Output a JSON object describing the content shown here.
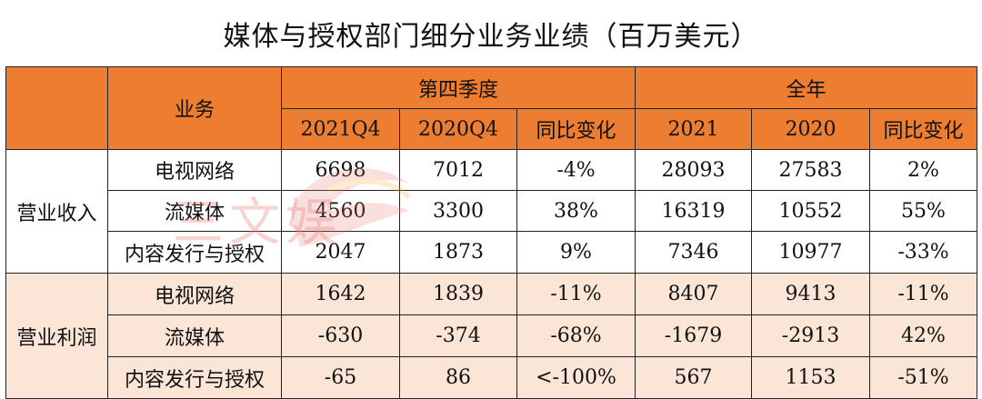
{
  "title": "媒体与授权部门细分业务业绩（百万美元）",
  "header": {
    "business": "业务",
    "q4_group": "第四季度",
    "fy_group": "全年",
    "q4_2021": "2021Q4",
    "q4_2020": "2020Q4",
    "q4_yoy": "同比变化",
    "fy_2021": "2021",
    "fy_2020": "2020",
    "fy_yoy": "同比变化"
  },
  "sections": [
    {
      "label": "营业收入",
      "rows": [
        {
          "name": "电视网络",
          "q4_2021": "6698",
          "q4_2020": "7012",
          "q4_yoy": "-4%",
          "fy_2021": "28093",
          "fy_2020": "27583",
          "fy_yoy": "2%"
        },
        {
          "name": "流媒体",
          "q4_2021": "4560",
          "q4_2020": "3300",
          "q4_yoy": "38%",
          "fy_2021": "16319",
          "fy_2020": "10552",
          "fy_yoy": "55%"
        },
        {
          "name": "内容发行与授权",
          "q4_2021": "2047",
          "q4_2020": "1873",
          "q4_yoy": "9%",
          "fy_2021": "7346",
          "fy_2020": "10977",
          "fy_yoy": "-33%"
        }
      ]
    },
    {
      "label": "营业利润",
      "rows": [
        {
          "name": "电视网络",
          "q4_2021": "1642",
          "q4_2020": "1839",
          "q4_yoy": "-11%",
          "fy_2021": "8407",
          "fy_2020": "9413",
          "fy_yoy": "-11%"
        },
        {
          "name": "流媒体",
          "q4_2021": "-630",
          "q4_2020": "-374",
          "q4_yoy": "-68%",
          "fy_2021": "-1679",
          "fy_2020": "-2913",
          "fy_yoy": "42%"
        },
        {
          "name": "内容发行与授权",
          "q4_2021": "-65",
          "q4_2020": "86",
          "q4_yoy": "<-100%",
          "fy_2021": "567",
          "fy_2020": "1153",
          "fy_yoy": "-51%"
        }
      ]
    }
  ],
  "watermark": {
    "text": "三文娱",
    "icon": "swirl-logo-icon"
  },
  "colors": {
    "header_bg": "#ed7d31",
    "profit_bg": "#fbe5d6",
    "border": "#222222"
  }
}
